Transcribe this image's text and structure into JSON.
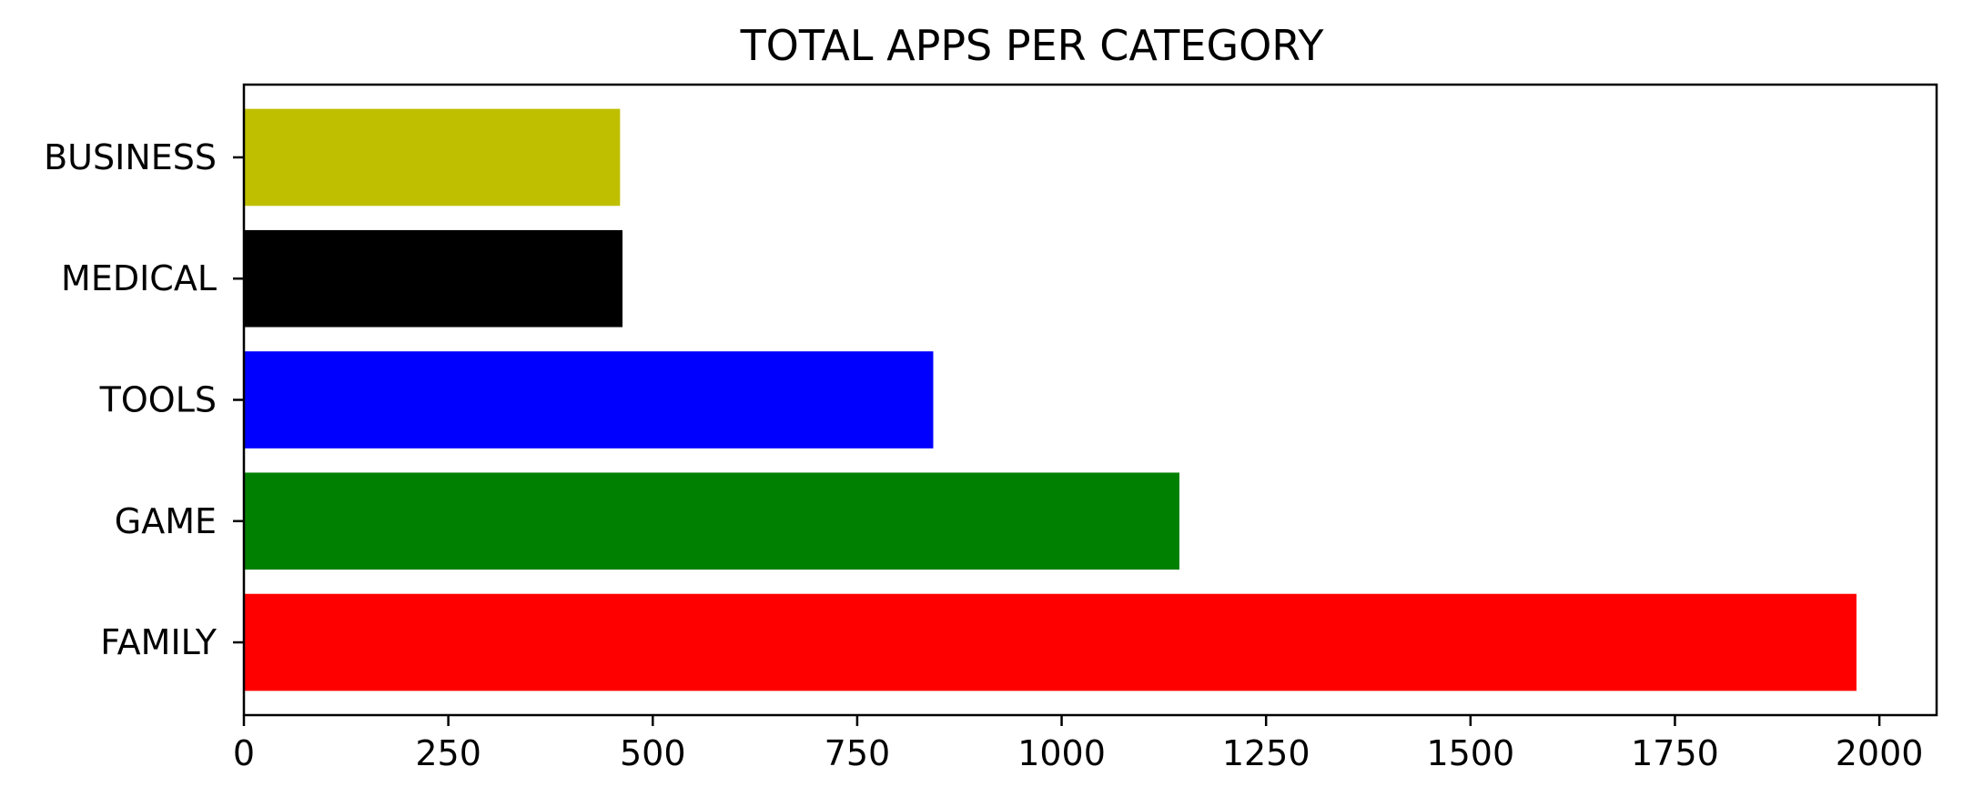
{
  "chart_data": {
    "type": "bar",
    "orientation": "horizontal",
    "title": "TOTAL APPS PER CATEGORY",
    "xlabel": "",
    "ylabel": "",
    "categories": [
      "FAMILY",
      "GAME",
      "TOOLS",
      "MEDICAL",
      "BUSINESS"
    ],
    "values": [
      1972,
      1144,
      843,
      463,
      460
    ],
    "colors": [
      "#ff0000",
      "#008000",
      "#0000ff",
      "#000000",
      "#bfbf00"
    ],
    "xlim": [
      0,
      2070
    ],
    "xticks": [
      0,
      250,
      500,
      750,
      1000,
      1250,
      1500,
      1750,
      2000
    ],
    "grid": false,
    "legend": "none"
  }
}
